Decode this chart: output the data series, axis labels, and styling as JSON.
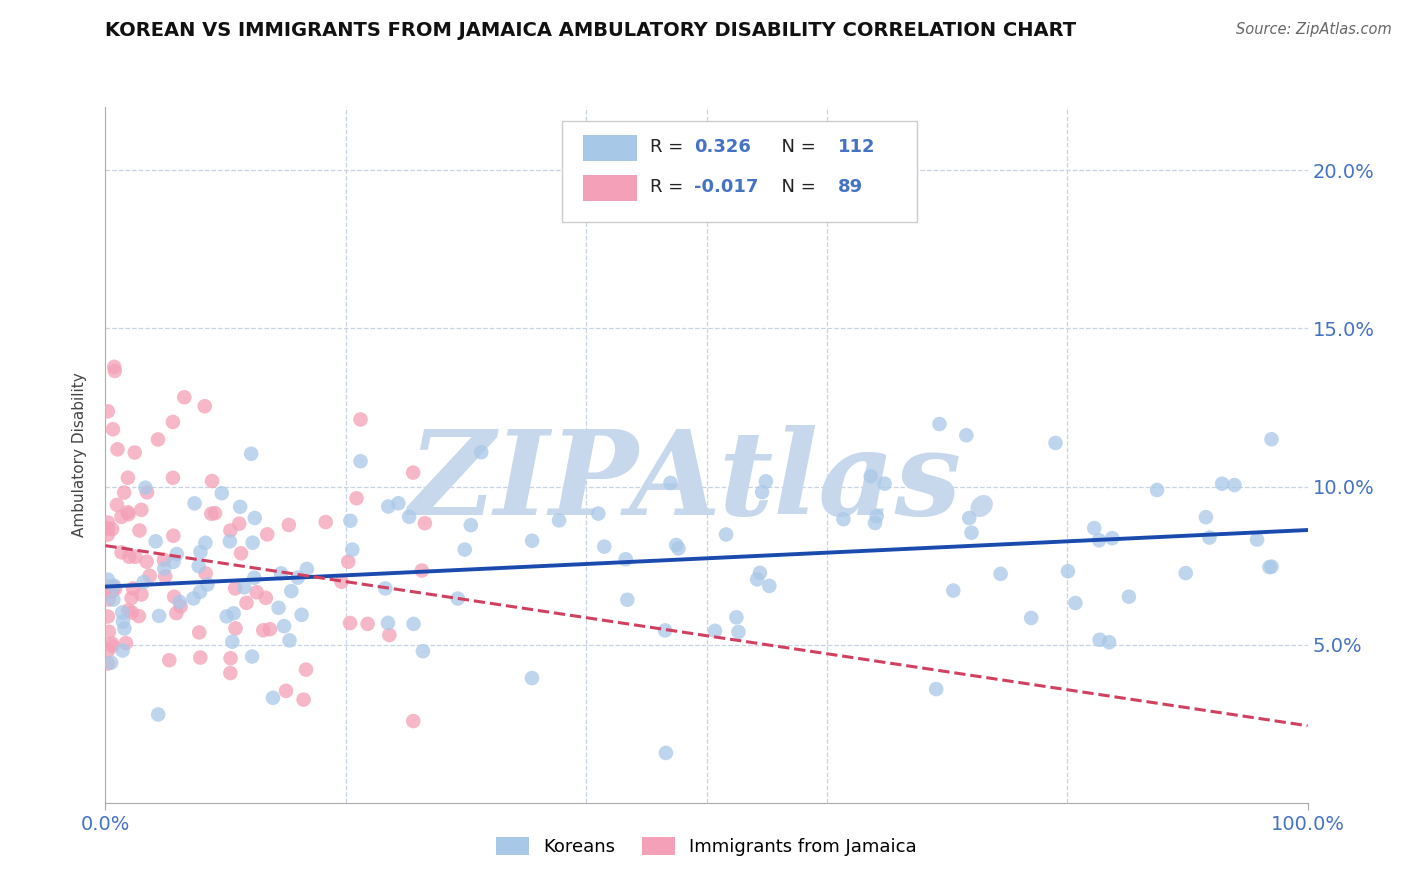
{
  "title": "KOREAN VS IMMIGRANTS FROM JAMAICA AMBULATORY DISABILITY CORRELATION CHART",
  "source": "Source: ZipAtlas.com",
  "ylabel": "Ambulatory Disability",
  "x_min": 0.0,
  "x_max": 1.0,
  "y_min": 0.0,
  "y_max": 0.22,
  "y_ticks": [
    0.05,
    0.1,
    0.15,
    0.2
  ],
  "y_tick_labels": [
    "5.0%",
    "10.0%",
    "15.0%",
    "20.0%"
  ],
  "x_ticks": [
    0.0,
    1.0
  ],
  "x_tick_labels": [
    "0.0%",
    "100.0%"
  ],
  "korean_color": "#a8c8e8",
  "jamaica_color": "#f4a0b8",
  "korean_line_color": "#1a4aad",
  "jamaica_line_color": "#d04060",
  "background_color": "#ffffff",
  "watermark_color": "#c8d8ec",
  "title_fontsize": 14,
  "axis_label_fontsize": 11,
  "tick_fontsize": 12,
  "korean_N": 112,
  "jamaica_N": 89,
  "legend_label1": "Koreans",
  "legend_label2": "Immigrants from Jamaica",
  "right_tick_color": "#4472c4",
  "seed": 99
}
